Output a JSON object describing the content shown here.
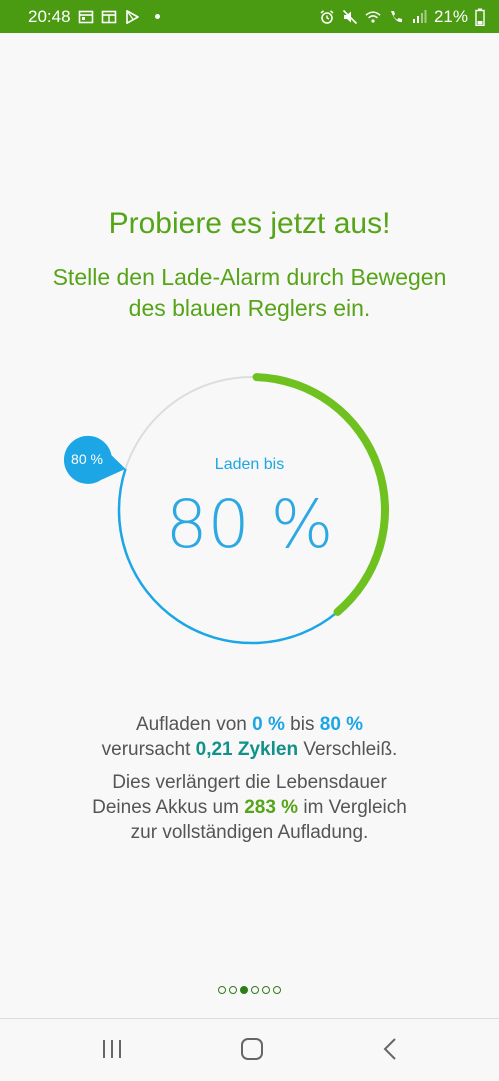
{
  "status_bar": {
    "time": "20:48",
    "battery": "21%",
    "left_icons": [
      "calendar-icon",
      "app-window-icon",
      "play-store-icon",
      "notification-dot-icon"
    ],
    "right_icons": [
      "alarm-icon",
      "mute-icon",
      "wifi-call-icon",
      "volte-call-icon",
      "signal-icon",
      "battery-icon"
    ]
  },
  "title": "Probiere es jetzt aus!",
  "subtitle": "Stelle den Lade-Alarm durch Bewegen des blauen Reglers ein.",
  "dial": {
    "label": "Laden bis",
    "value_text": "80 %",
    "handle_text": "80 %",
    "start_level": 0,
    "target_level": 80,
    "colors": {
      "track": "#dddddd",
      "blue": "#1da6e6",
      "green": "#6ec11f"
    }
  },
  "info": {
    "line1_prefix": "Aufladen von ",
    "from_value": "0 %",
    "line1_mid": " bis ",
    "to_value": "80 %",
    "line2_prefix": "verursacht ",
    "cycles": "0,21 Zyklen",
    "line2_suffix": " Verschleiß.",
    "line3": "Dies verlängert die Lebensdauer",
    "line4_prefix": "Deines Akkus um ",
    "percent": "283 %",
    "line4_suffix": " im Vergleich",
    "line5": "zur vollständigen Aufladung."
  },
  "pager": {
    "total": 6,
    "active_index": 2
  },
  "nav": {
    "icons": [
      "recent-apps-icon",
      "home-icon",
      "back-icon"
    ]
  },
  "colors": {
    "accent_green": "#56a418",
    "status_bar": "#4a9a12",
    "accent_blue": "#1da6e6",
    "teal": "#12908a"
  }
}
